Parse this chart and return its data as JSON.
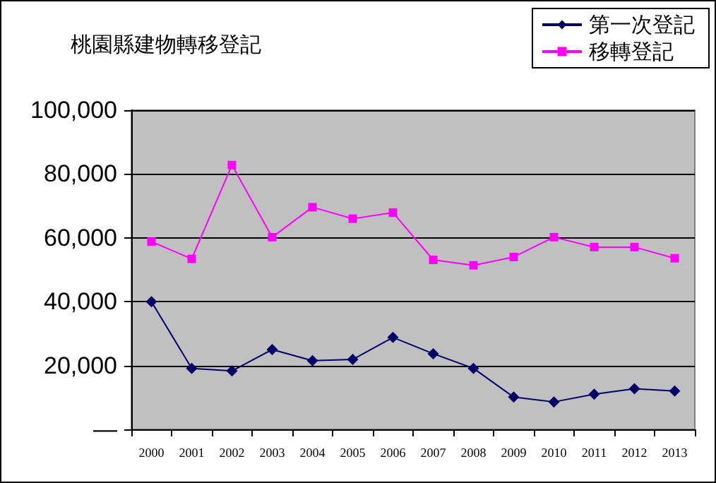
{
  "chart_data": {
    "type": "line",
    "title": "桃園縣建物轉移登記",
    "categories": [
      "2000",
      "2001",
      "2002",
      "2003",
      "2004",
      "2005",
      "2006",
      "2007",
      "2008",
      "2009",
      "2010",
      "2011",
      "2012",
      "2013"
    ],
    "series": [
      {
        "name": "第一次登記",
        "color": "#000066",
        "marker": "diamond",
        "values": [
          40000,
          19100,
          18300,
          25000,
          21500,
          21900,
          28800,
          23700,
          19100,
          10100,
          8600,
          11000,
          12700,
          12000
        ]
      },
      {
        "name": "移轉登記",
        "color": "#ff00ff",
        "marker": "square",
        "values": [
          58800,
          53400,
          82800,
          60200,
          69600,
          66000,
          67900,
          53100,
          51400,
          54000,
          60200,
          57100,
          57100,
          53600
        ]
      }
    ],
    "ylim": [
      0,
      100000
    ],
    "yticks": [
      {
        "value": 0,
        "label": "—"
      },
      {
        "value": 20000,
        "label": "20,000"
      },
      {
        "value": 40000,
        "label": "40,000"
      },
      {
        "value": 60000,
        "label": "60,000"
      },
      {
        "value": 80000,
        "label": "80,000"
      },
      {
        "value": 100000,
        "label": "100,000"
      }
    ],
    "grid": "y",
    "legend": "top right",
    "line_style": "solid"
  }
}
